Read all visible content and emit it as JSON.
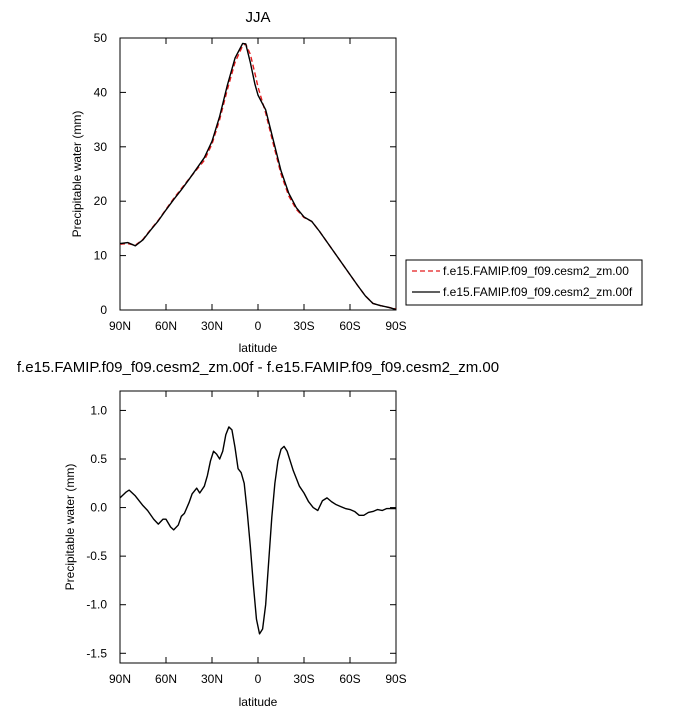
{
  "chart_data": [
    {
      "type": "line",
      "title": "JJA",
      "xlabel": "latitude",
      "ylabel": "Precipitable water (mm)",
      "xlim": [
        90,
        -90
      ],
      "ylim": [
        0,
        50
      ],
      "x_ticks": [
        90,
        60,
        30,
        0,
        -30,
        -60,
        -90
      ],
      "x_tick_labels": [
        "90N",
        "60N",
        "30N",
        "0",
        "30S",
        "60S",
        "90S"
      ],
      "y_ticks": [
        0,
        10,
        20,
        30,
        40,
        50
      ],
      "y_tick_labels": [
        "0",
        "10",
        "20",
        "30",
        "40",
        "50"
      ],
      "grid": false,
      "legend_position": "right",
      "series": [
        {
          "name": "f.e15.FAMIP.f09_f09.cesm2_zm.00",
          "color": "#e31a1c",
          "dash": "dashed",
          "x": [
            90,
            85,
            80,
            75,
            70,
            65,
            60,
            55,
            50,
            45,
            40,
            35,
            30,
            25,
            20,
            15,
            10,
            8,
            5,
            2,
            0,
            -5,
            -10,
            -15,
            -20,
            -25,
            -30,
            -35,
            -40,
            -45,
            -50,
            -55,
            -60,
            -65,
            -70,
            -75,
            -80,
            -85,
            -90
          ],
          "y": [
            12.1,
            12.2,
            11.9,
            13.0,
            14.8,
            16.5,
            18.5,
            20.5,
            22.3,
            24.1,
            25.8,
            27.5,
            30.5,
            35.0,
            40.5,
            45.5,
            48.6,
            48.9,
            47.0,
            43.5,
            41.0,
            36.2,
            30.5,
            25.0,
            21.0,
            18.5,
            17.0,
            16.3,
            14.5,
            12.5,
            10.5,
            8.5,
            6.5,
            4.5,
            2.6,
            1.2,
            0.8,
            0.5,
            0.2
          ]
        },
        {
          "name": "f.e15.FAMIP.f09_f09.cesm2_zm.00f",
          "color": "#000000",
          "dash": "solid",
          "x": [
            90,
            85,
            80,
            75,
            70,
            65,
            60,
            55,
            50,
            45,
            40,
            35,
            30,
            25,
            20,
            15,
            10,
            8,
            5,
            2,
            0,
            -5,
            -10,
            -15,
            -20,
            -25,
            -30,
            -35,
            -40,
            -45,
            -50,
            -55,
            -60,
            -65,
            -70,
            -75,
            -80,
            -85,
            -90
          ],
          "y": [
            12.2,
            12.4,
            11.8,
            12.9,
            14.7,
            16.4,
            18.4,
            20.3,
            22.1,
            24.0,
            26.0,
            28.0,
            31.0,
            35.6,
            41.3,
            46.3,
            49.0,
            48.9,
            45.5,
            41.5,
            39.5,
            36.8,
            31.2,
            25.6,
            21.5,
            18.8,
            17.1,
            16.3,
            14.5,
            12.5,
            10.5,
            8.5,
            6.5,
            4.5,
            2.6,
            1.2,
            0.8,
            0.5,
            0.1
          ]
        }
      ]
    },
    {
      "type": "line",
      "title": "f.e15.FAMIP.f09_f09.cesm2_zm.00f - f.e15.FAMIP.f09_f09.cesm2_zm.00",
      "xlabel": "latitude",
      "ylabel": "Precipitable water (mm)",
      "xlim": [
        90,
        -90
      ],
      "ylim": [
        -1.6,
        1.2
      ],
      "x_ticks": [
        90,
        60,
        30,
        0,
        -30,
        -60,
        -90
      ],
      "x_tick_labels": [
        "90N",
        "60N",
        "30N",
        "0",
        "30S",
        "60S",
        "90S"
      ],
      "y_ticks": [
        1.0,
        0.5,
        0.0,
        -0.5,
        -1.0,
        -1.5
      ],
      "y_tick_labels": [
        "1.0",
        "0.5",
        "0.0",
        "-0.5",
        "-1.0",
        "-1.5"
      ],
      "grid": false,
      "series": [
        {
          "color": "#000000",
          "dash": "solid",
          "x": [
            90,
            86,
            84,
            80,
            75,
            72,
            68,
            65,
            62,
            60,
            57,
            55,
            52,
            50,
            48,
            45,
            43,
            40,
            38,
            35,
            33,
            31,
            29,
            27,
            25,
            23,
            21,
            19,
            17,
            15,
            13,
            11,
            9,
            7,
            5,
            3,
            1,
            -1,
            -3,
            -5,
            -7,
            -9,
            -11,
            -13,
            -15,
            -17,
            -19,
            -21,
            -23,
            -25,
            -27,
            -30,
            -33,
            -36,
            -39,
            -42,
            -45,
            -48,
            -51,
            -54,
            -57,
            -60,
            -63,
            -66,
            -69,
            -72,
            -75,
            -78,
            -81,
            -84,
            -87,
            -90
          ],
          "y": [
            0.1,
            0.16,
            0.18,
            0.12,
            0.02,
            -0.03,
            -0.12,
            -0.17,
            -0.12,
            -0.12,
            -0.2,
            -0.23,
            -0.18,
            -0.09,
            -0.06,
            0.05,
            0.14,
            0.2,
            0.15,
            0.22,
            0.33,
            0.48,
            0.58,
            0.55,
            0.5,
            0.58,
            0.75,
            0.83,
            0.8,
            0.62,
            0.4,
            0.36,
            0.25,
            -0.05,
            -0.4,
            -0.8,
            -1.15,
            -1.3,
            -1.25,
            -1.0,
            -0.55,
            -0.1,
            0.25,
            0.48,
            0.6,
            0.63,
            0.58,
            0.48,
            0.38,
            0.3,
            0.22,
            0.15,
            0.06,
            0.0,
            -0.03,
            0.07,
            0.1,
            0.06,
            0.03,
            0.01,
            -0.01,
            -0.02,
            -0.04,
            -0.08,
            -0.08,
            -0.05,
            -0.04,
            -0.02,
            -0.03,
            -0.01,
            -0.01,
            -0.01
          ]
        }
      ]
    }
  ]
}
